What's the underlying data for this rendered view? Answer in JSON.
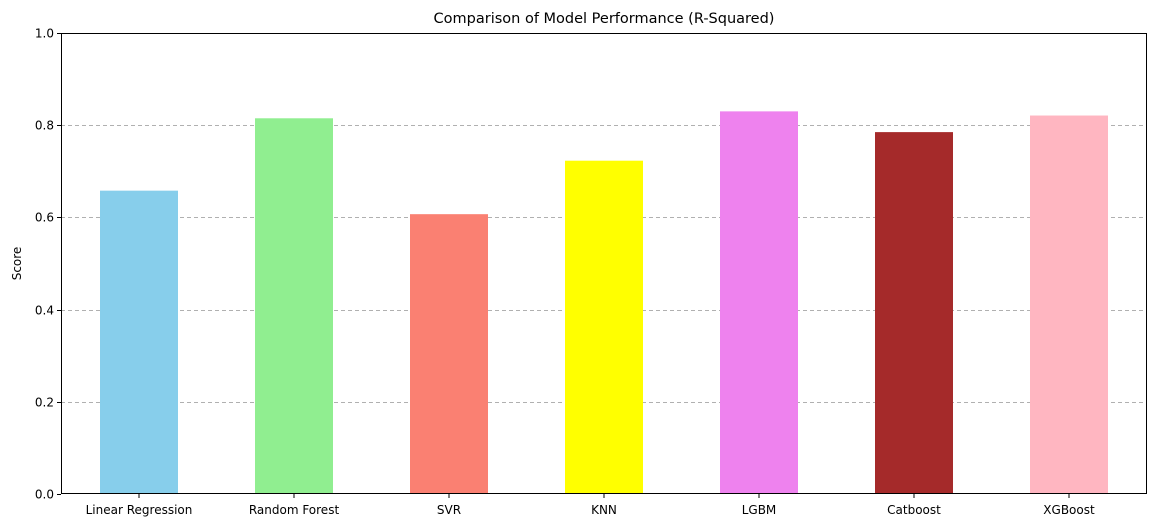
{
  "chart_data": {
    "type": "bar",
    "title": "Comparison of Model Performance (R-Squared)",
    "xlabel": "",
    "ylabel": "Score",
    "ylim": [
      0,
      1.0
    ],
    "yticks": [
      "0.0",
      "0.2",
      "0.4",
      "0.6",
      "0.8",
      "1.0"
    ],
    "ytick_values": [
      0,
      0.2,
      0.4,
      0.6,
      0.8,
      1.0
    ],
    "grid": "y-dashed",
    "categories": [
      "Linear Regression",
      "Random Forest",
      "SVR",
      "KNN",
      "LGBM",
      "Catboost",
      "XGBoost"
    ],
    "values": [
      0.658,
      0.815,
      0.607,
      0.723,
      0.83,
      0.785,
      0.821
    ],
    "colors": [
      "#87ceeb",
      "#90ee90",
      "#fa8072",
      "#ffff00",
      "#ee82ee",
      "#a52a2a",
      "#ffb6c1"
    ]
  }
}
